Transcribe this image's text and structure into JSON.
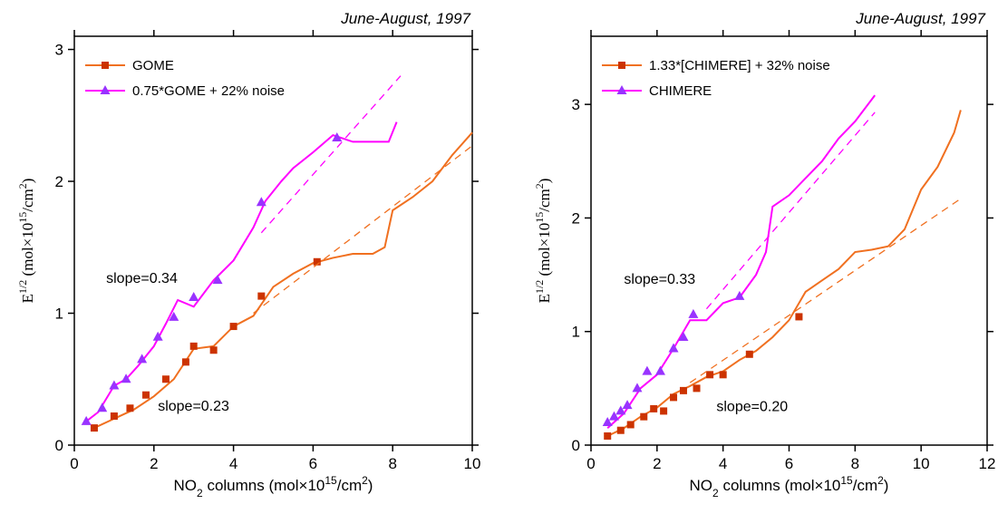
{
  "chart_data": [
    {
      "type": "line",
      "title": "June-August, 1997",
      "xlabel": [
        {
          "text": "NO"
        },
        {
          "text": "2",
          "sub": true
        },
        {
          "text": " columns (mol×10"
        },
        {
          "text": "15",
          "sup": true
        },
        {
          "text": "/cm"
        },
        {
          "text": "2",
          "sup": true
        },
        {
          "text": ")"
        }
      ],
      "ylabel": [
        {
          "text": "E"
        },
        {
          "text": "1/2",
          "sup": true
        },
        {
          "text": " (mol×10"
        },
        {
          "text": "15",
          "sup": true
        },
        {
          "text": "/cm"
        },
        {
          "text": "2",
          "sup": true
        },
        {
          "text": ")"
        }
      ],
      "xlim": [
        0,
        10
      ],
      "ylim": [
        0,
        3.1
      ],
      "xticks": [
        0,
        2,
        4,
        6,
        8,
        10
      ],
      "yticks": [
        0,
        1,
        2,
        3
      ],
      "legend": "upper left",
      "series": [
        {
          "name": "GOME",
          "color": "#f07020",
          "marker": "square",
          "marker_color": "#cc3300",
          "x": [
            0.5,
            1,
            1.5,
            2,
            2.5,
            3,
            3.5,
            4,
            4.5,
            5,
            5.5,
            6,
            6.5,
            7,
            7.5,
            7.8,
            8,
            8.5,
            9,
            9.5,
            10
          ],
          "values": [
            0.13,
            0.2,
            0.27,
            0.37,
            0.5,
            0.73,
            0.75,
            0.9,
            0.98,
            1.2,
            1.3,
            1.38,
            1.42,
            1.45,
            1.45,
            1.5,
            1.78,
            1.88,
            2.0,
            2.2,
            2.37
          ],
          "markers": {
            "x": [
              0.5,
              1,
              1.4,
              1.8,
              2.3,
              2.8,
              3,
              3.5,
              4,
              4.7,
              6.1
            ],
            "values": [
              0.13,
              0.22,
              0.28,
              0.38,
              0.5,
              0.63,
              0.75,
              0.72,
              0.9,
              1.13,
              1.39
            ]
          }
        },
        {
          "name": "0.75*GOME + 22% noise",
          "color": "#ff00ff",
          "marker": "triangle",
          "marker_color": "#9933ff",
          "x": [
            0.3,
            0.6,
            1,
            1.3,
            1.6,
            2,
            2.3,
            2.6,
            3,
            3.5,
            4,
            4.5,
            4.8,
            5.2,
            5.5,
            6,
            6.5,
            7,
            7.5,
            7.9,
            8.1
          ],
          "values": [
            0.18,
            0.25,
            0.45,
            0.5,
            0.6,
            0.75,
            0.92,
            1.1,
            1.05,
            1.25,
            1.4,
            1.65,
            1.85,
            2.0,
            2.1,
            2.22,
            2.35,
            2.3,
            2.3,
            2.3,
            2.45
          ],
          "markers": {
            "x": [
              0.3,
              0.7,
              1,
              1.3,
              1.7,
              2.1,
              2.5,
              3,
              3.6,
              4.7,
              6.6
            ],
            "values": [
              0.18,
              0.28,
              0.45,
              0.5,
              0.65,
              0.82,
              0.97,
              1.12,
              1.25,
              1.84,
              2.33
            ]
          }
        },
        {
          "color": "#f07020",
          "dash": true,
          "x": [
            4.5,
            10
          ],
          "values": [
            1.0,
            2.27
          ]
        },
        {
          "color": "#ff00ff",
          "dash": true,
          "x": [
            4.7,
            8.2
          ],
          "values": [
            1.61,
            2.8
          ]
        }
      ],
      "annotations": [
        {
          "text": "slope=0.34",
          "x": 0.8,
          "y": 1.23,
          "color": "#ff00ff"
        },
        {
          "text": "slope=0.23",
          "x": 2.1,
          "y": 0.26,
          "color": "#dd2200"
        }
      ]
    },
    {
      "type": "line",
      "title": "June-August, 1997",
      "xlabel": [
        {
          "text": "NO"
        },
        {
          "text": "2",
          "sub": true
        },
        {
          "text": " columns (mol×10"
        },
        {
          "text": "15",
          "sup": true
        },
        {
          "text": "/cm"
        },
        {
          "text": "2",
          "sup": true
        },
        {
          "text": ")"
        }
      ],
      "ylabel": [
        {
          "text": "E"
        },
        {
          "text": "1/2",
          "sup": true
        },
        {
          "text": " (mol×10"
        },
        {
          "text": "15",
          "sup": true
        },
        {
          "text": "/cm"
        },
        {
          "text": "2",
          "sup": true
        },
        {
          "text": ")"
        }
      ],
      "xlim": [
        0,
        12
      ],
      "ylim": [
        0,
        3.6
      ],
      "xticks": [
        0,
        2,
        4,
        6,
        8,
        10,
        12
      ],
      "yticks": [
        0,
        1,
        2,
        3
      ],
      "legend": "upper left",
      "series": [
        {
          "name": "1.33*[CHIMERE] + 32% noise",
          "color": "#f07020",
          "marker": "square",
          "marker_color": "#cc3300",
          "x": [
            0.5,
            1,
            1.5,
            2,
            2.5,
            3,
            3.5,
            4,
            4.5,
            5,
            5.5,
            6,
            6.5,
            7,
            7.5,
            8,
            8.5,
            9,
            9.5,
            10,
            10.5,
            11,
            11.2
          ],
          "values": [
            0.08,
            0.15,
            0.25,
            0.33,
            0.45,
            0.52,
            0.6,
            0.65,
            0.75,
            0.83,
            0.95,
            1.1,
            1.35,
            1.45,
            1.55,
            1.7,
            1.72,
            1.75,
            1.9,
            2.25,
            2.45,
            2.75,
            2.95
          ],
          "markers": {
            "x": [
              0.5,
              0.9,
              1.2,
              1.6,
              1.9,
              2.2,
              2.5,
              2.8,
              3.2,
              3.6,
              4.0,
              4.8,
              6.3
            ],
            "values": [
              0.08,
              0.13,
              0.18,
              0.25,
              0.32,
              0.3,
              0.42,
              0.48,
              0.5,
              0.62,
              0.62,
              0.8,
              1.13
            ]
          }
        },
        {
          "name": "CHIMERE",
          "color": "#ff00ff",
          "marker": "triangle",
          "marker_color": "#9933ff",
          "x": [
            0.5,
            1,
            1.5,
            2,
            2.5,
            3,
            3.5,
            4,
            4.5,
            5,
            5.3,
            5.5,
            6,
            6.5,
            7,
            7.5,
            8,
            8.6
          ],
          "values": [
            0.15,
            0.28,
            0.5,
            0.62,
            0.85,
            1.1,
            1.1,
            1.25,
            1.3,
            1.5,
            1.7,
            2.1,
            2.2,
            2.35,
            2.5,
            2.7,
            2.85,
            3.08
          ],
          "markers": {
            "x": [
              0.5,
              0.7,
              0.9,
              1.1,
              1.4,
              1.7,
              2.1,
              2.5,
              2.8,
              3.1,
              4.5
            ],
            "values": [
              0.2,
              0.25,
              0.3,
              0.35,
              0.5,
              0.65,
              0.65,
              0.85,
              0.95,
              1.15,
              1.31
            ]
          }
        },
        {
          "color": "#f07020",
          "dash": true,
          "x": [
            3,
            11.2
          ],
          "values": [
            0.55,
            2.17
          ]
        },
        {
          "color": "#ff00ff",
          "dash": true,
          "x": [
            3.5,
            8.6
          ],
          "values": [
            1.2,
            2.93
          ]
        }
      ],
      "annotations": [
        {
          "text": "slope=0.33",
          "x": 1.0,
          "y": 1.42,
          "color": "#ff00ff"
        },
        {
          "text": "slope=0.20",
          "x": 3.8,
          "y": 0.3,
          "color": "#dd2200"
        }
      ]
    }
  ]
}
